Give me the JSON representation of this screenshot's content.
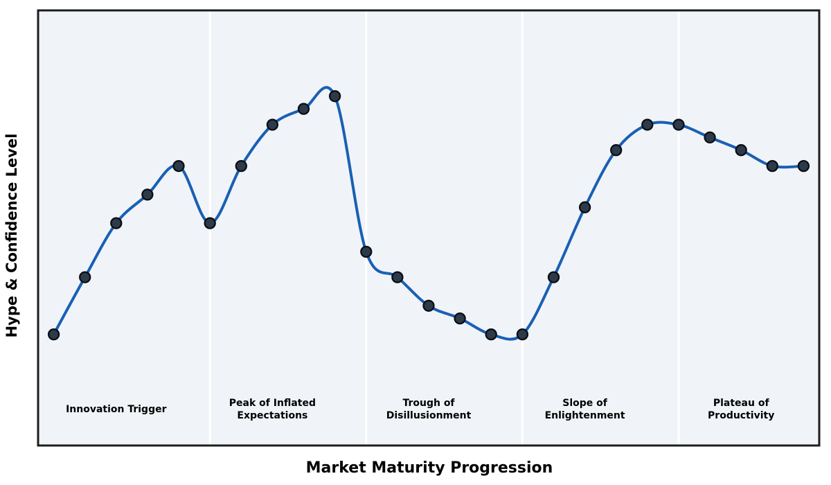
{
  "chart_data": {
    "type": "line",
    "title": "",
    "xlabel": "Market Maturity Progression",
    "ylabel": "Hype & Confidence Level",
    "x": [
      0,
      1,
      2,
      3,
      4,
      5,
      6,
      7,
      8,
      9,
      10,
      11,
      12,
      13,
      14,
      15,
      16,
      17,
      18,
      19,
      20,
      21,
      22,
      23,
      24
    ],
    "values": [
      20,
      38,
      55,
      64,
      73,
      55,
      73,
      86,
      91,
      95,
      46,
      38,
      29,
      25,
      20,
      20,
      38,
      60,
      78,
      86,
      86,
      82,
      78,
      73,
      73
    ],
    "xlim": [
      -0.5,
      24.5
    ],
    "ylim": [
      -15,
      122
    ],
    "grid": false,
    "legend": "none",
    "smoothing": "cubic-spline",
    "markers": true,
    "phase_divider_x": [
      5,
      10,
      15,
      20
    ],
    "phases": [
      {
        "lines": [
          "Innovation Trigger"
        ],
        "center_x": 2
      },
      {
        "lines": [
          "Peak of Inflated",
          "Expectations"
        ],
        "center_x": 7
      },
      {
        "lines": [
          "Trough of",
          "Disillusionment"
        ],
        "center_x": 12
      },
      {
        "lines": [
          "Slope of",
          "Enlightenment"
        ],
        "center_x": 17
      },
      {
        "lines": [
          "Plateau of",
          "Productivity"
        ],
        "center_x": 22
      }
    ],
    "colors": {
      "line": "#1a5fb4",
      "marker_fill": "#2c3a4a",
      "marker_edge": "#0a0e14",
      "band_bg": "#f0f4f8",
      "divider": "#ffffff",
      "border": "#1c1c1c",
      "text": "#000000",
      "page_bg": "#ffffff"
    }
  }
}
